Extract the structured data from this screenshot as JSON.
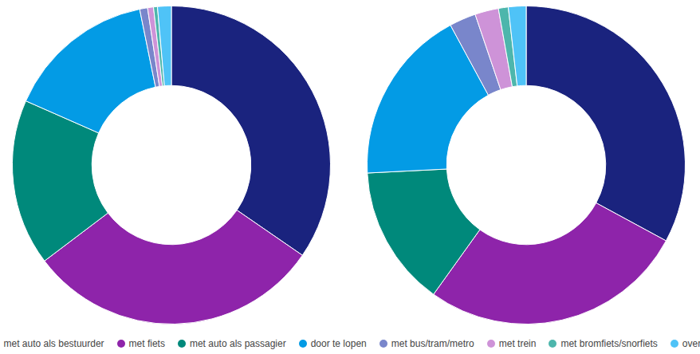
{
  "chart_data": [
    {
      "type": "doughnut",
      "categories": [
        "met auto als bestuurder",
        "met fiets",
        "met auto als passagier",
        "door te lopen",
        "met bus/tram/metro",
        "met trein",
        "met bromfiets/snorfiets",
        "overig"
      ],
      "values": [
        34.6,
        30.1,
        16.9,
        15.2,
        0.8,
        0.6,
        0.4,
        1.4
      ],
      "colors": [
        "#1a237e",
        "#8e24aa",
        "#00897b",
        "#039be5",
        "#7986cb",
        "#ce93d8",
        "#4db6ac",
        "#4fc3f7"
      ],
      "legend": "bottom"
    },
    {
      "type": "doughnut",
      "categories": [
        "met auto als bestuurder",
        "met fiets",
        "met auto als passagier",
        "door te lopen",
        "met bus/tram/metro",
        "met trein",
        "met bromfiets/snorfiets",
        "overig"
      ],
      "values": [
        32.9,
        27.0,
        14.3,
        17.9,
        2.7,
        2.4,
        1.0,
        1.8
      ],
      "colors": [
        "#1a237e",
        "#8e24aa",
        "#00897b",
        "#039be5",
        "#7986cb",
        "#ce93d8",
        "#4db6ac",
        "#4fc3f7"
      ]
    }
  ]
}
